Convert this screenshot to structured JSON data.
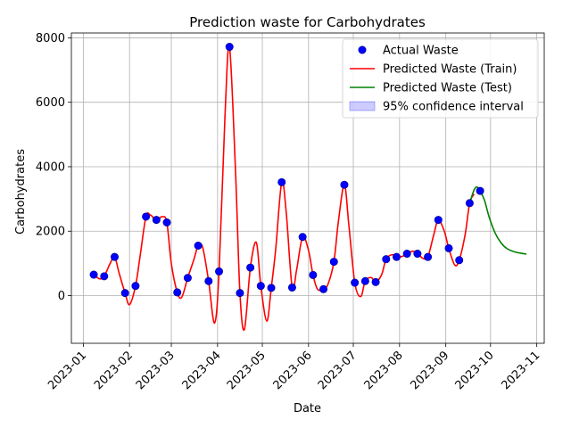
{
  "chart_data": {
    "type": "line",
    "title": "Prediction waste for Carbohydrates",
    "xlabel": "Date",
    "ylabel": "Carbohydrates",
    "xlim": [
      "2022-12-24",
      "2023-11-06"
    ],
    "ylim": [
      -1480,
      8150
    ],
    "grid": true,
    "legend_position": "top-right",
    "x_tick_labels": [
      "2023-01",
      "2023-02",
      "2023-03",
      "2023-04",
      "2023-05",
      "2023-06",
      "2023-07",
      "2023-08",
      "2023-09",
      "2023-10",
      "2023-11"
    ],
    "x_ticks": [
      "2023-01-01",
      "2023-02-01",
      "2023-03-01",
      "2023-04-01",
      "2023-05-01",
      "2023-06-01",
      "2023-07-01",
      "2023-08-01",
      "2023-09-01",
      "2023-10-01",
      "2023-11-01"
    ],
    "y_ticks": [
      0,
      2000,
      4000,
      6000,
      8000
    ],
    "y_tick_labels": [
      "0",
      "2000",
      "4000",
      "6000",
      "8000"
    ],
    "series": [
      {
        "name": "Actual Waste",
        "kind": "scatter",
        "color": "#0000ff",
        "edgecolor": "#000080",
        "x": [
          "2023-01-08",
          "2023-01-15",
          "2023-01-22",
          "2023-01-29",
          "2023-02-05",
          "2023-02-12",
          "2023-02-19",
          "2023-02-26",
          "2023-03-05",
          "2023-03-12",
          "2023-03-19",
          "2023-03-26",
          "2023-04-02",
          "2023-04-09",
          "2023-04-16",
          "2023-04-23",
          "2023-04-30",
          "2023-05-07",
          "2023-05-14",
          "2023-05-21",
          "2023-05-28",
          "2023-06-04",
          "2023-06-11",
          "2023-06-18",
          "2023-06-25",
          "2023-07-02",
          "2023-07-09",
          "2023-07-16",
          "2023-07-23",
          "2023-07-30",
          "2023-08-06",
          "2023-08-13",
          "2023-08-20",
          "2023-08-27",
          "2023-09-03",
          "2023-09-10",
          "2023-09-17",
          "2023-09-24"
        ],
        "y": [
          650,
          600,
          1200,
          80,
          300,
          2450,
          2350,
          2270,
          100,
          550,
          1550,
          450,
          750,
          7720,
          80,
          870,
          300,
          240,
          3520,
          250,
          1820,
          640,
          200,
          1050,
          3440,
          400,
          450,
          420,
          1130,
          1200,
          1300,
          1300,
          1200,
          2350,
          1470,
          1100,
          2870,
          3250
        ]
      },
      {
        "name": "Predicted Waste (Train)",
        "kind": "line",
        "color": "#ff0000",
        "x": [
          "2023-01-08",
          "2023-01-12",
          "2023-01-15",
          "2023-01-19",
          "2023-01-22",
          "2023-01-25",
          "2023-01-29",
          "2023-02-01",
          "2023-02-05",
          "2023-02-08",
          "2023-02-12",
          "2023-02-15",
          "2023-02-19",
          "2023-02-23",
          "2023-02-26",
          "2023-03-01",
          "2023-03-05",
          "2023-03-08",
          "2023-03-12",
          "2023-03-16",
          "2023-03-19",
          "2023-03-22",
          "2023-03-26",
          "2023-03-30",
          "2023-04-02",
          "2023-04-06",
          "2023-04-09",
          "2023-04-13",
          "2023-04-16",
          "2023-04-19",
          "2023-04-23",
          "2023-04-27",
          "2023-04-30",
          "2023-05-04",
          "2023-05-07",
          "2023-05-10",
          "2023-05-14",
          "2023-05-17",
          "2023-05-21",
          "2023-05-24",
          "2023-05-28",
          "2023-06-01",
          "2023-06-04",
          "2023-06-07",
          "2023-06-11",
          "2023-06-14",
          "2023-06-18",
          "2023-06-21",
          "2023-06-25",
          "2023-06-28",
          "2023-07-02",
          "2023-07-06",
          "2023-07-09",
          "2023-07-13",
          "2023-07-16",
          "2023-07-20",
          "2023-07-23",
          "2023-07-27",
          "2023-07-30",
          "2023-08-03",
          "2023-08-06",
          "2023-08-10",
          "2023-08-13",
          "2023-08-17",
          "2023-08-20",
          "2023-08-24",
          "2023-08-27",
          "2023-08-31",
          "2023-09-03",
          "2023-09-07",
          "2023-09-10",
          "2023-09-14",
          "2023-09-17",
          "2023-09-20"
        ],
        "y": [
          650,
          520,
          600,
          1000,
          1200,
          700,
          80,
          -280,
          300,
          1200,
          2450,
          2500,
          2350,
          2450,
          2270,
          1000,
          100,
          -50,
          550,
          1100,
          1550,
          1500,
          450,
          -850,
          750,
          5600,
          7720,
          3900,
          80,
          -1050,
          870,
          1650,
          300,
          -790,
          240,
          1450,
          3520,
          2600,
          250,
          800,
          1820,
          1400,
          640,
          200,
          200,
          350,
          1050,
          2300,
          3440,
          2200,
          400,
          -30,
          450,
          560,
          420,
          650,
          1130,
          1270,
          1200,
          1220,
          1300,
          1380,
          1300,
          1150,
          1200,
          1900,
          2350,
          2000,
          1470,
          950,
          1100,
          1900,
          2870,
          3150
        ]
      },
      {
        "name": "Predicted Waste (Test)",
        "kind": "line",
        "color": "#008000",
        "x": [
          "2023-09-17",
          "2023-09-20",
          "2023-09-22",
          "2023-09-24",
          "2023-09-27",
          "2023-09-30",
          "2023-10-04",
          "2023-10-08",
          "2023-10-12",
          "2023-10-17",
          "2023-10-22",
          "2023-10-25"
        ],
        "y": [
          2870,
          3280,
          3370,
          3250,
          2950,
          2450,
          1950,
          1640,
          1460,
          1360,
          1310,
          1290
        ]
      },
      {
        "name": "95% confidence interval",
        "kind": "band",
        "color": "#0000ff",
        "alpha": 0.2,
        "x": [],
        "lower": [],
        "upper": []
      }
    ]
  }
}
